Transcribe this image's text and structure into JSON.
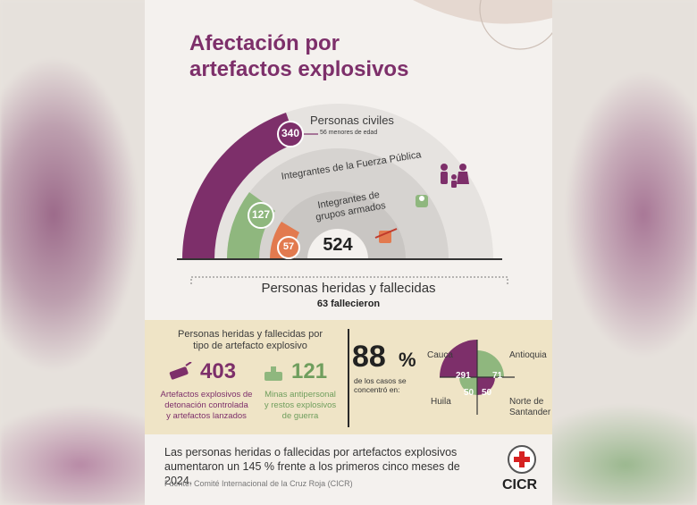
{
  "title_line1": "Afectación por",
  "title_line2": "artefactos explosivos",
  "groups": {
    "civiles": {
      "label": "Personas civiles",
      "value": "340",
      "note": "56 menores de edad"
    },
    "fuerza": {
      "label": "Integrantes de la Fuerza Pública",
      "value": "127"
    },
    "armados": {
      "label_line1": "Integrantes de",
      "label_line2": "grupos armados",
      "value": "57"
    },
    "total": "524"
  },
  "summary": {
    "label": "Personas heridas y fallecidas",
    "deaths": "63 fallecieron"
  },
  "tipo": {
    "heading_line1": "Personas heridas y fallecidas por",
    "heading_line2": "tipo de artefacto explosivo",
    "artefactos": {
      "value": "403",
      "line1": "Artefactos explosivos de",
      "line2": "detonación controlada",
      "line3": "y artefactos lanzados"
    },
    "minas": {
      "value": "121",
      "line1": "Minas antipersonal",
      "line2": "y restos explosivos",
      "line3": "de guerra"
    }
  },
  "concentracion": {
    "pct": "88",
    "pct_sign": "%",
    "text_line1": "de los casos se",
    "text_line2": "concentró en:",
    "regions": {
      "cauca": {
        "name": "Cauca",
        "value": "291"
      },
      "antioquia": {
        "name": "Antioquia",
        "value": "71"
      },
      "huila": {
        "name": "Huila",
        "value": "50"
      },
      "santander": {
        "name_line1": "Norte de",
        "name_line2": "Santander",
        "value": "50"
      }
    }
  },
  "footer": {
    "text": "Las personas heridas o fallecidas por artefactos explosivos aumentaron un 145 % frente a los primeros cinco meses de 2024.",
    "source": "Fuente:  Comité Internacional de la Cruz Roja (CICR)",
    "org": "CICR"
  },
  "colors": {
    "purple": "#7d2f6a",
    "green": "#8fb77e",
    "orange": "#e27a4f",
    "grey": "#d9d6d3",
    "cream": "#efe4c6"
  }
}
